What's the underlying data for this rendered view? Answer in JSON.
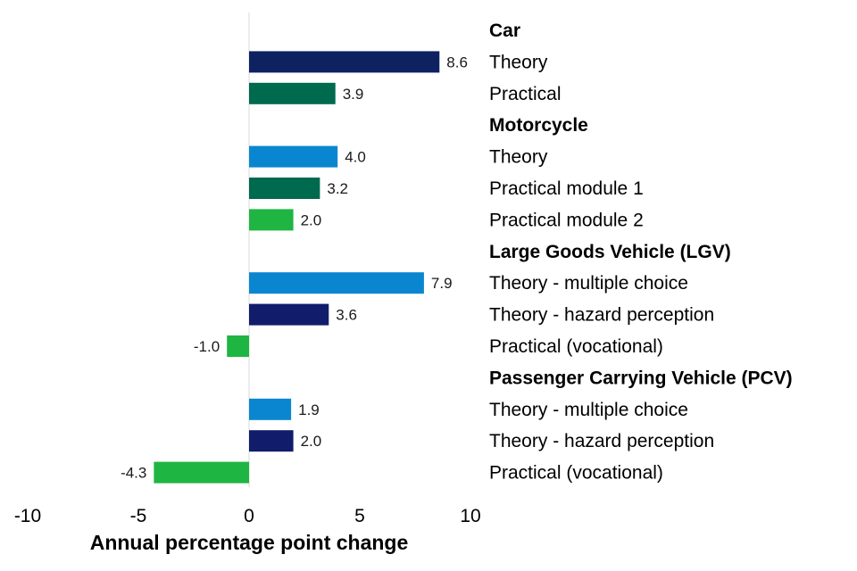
{
  "chart_data": {
    "type": "bar",
    "orientation": "horizontal",
    "xlabel": "Annual percentage point change",
    "xlim": [
      -10,
      10
    ],
    "xticks": [
      -10,
      -5,
      0,
      5,
      10
    ],
    "grid": false,
    "groups": [
      {
        "name": "Car",
        "items": [
          {
            "label": "Theory",
            "value": 8.6,
            "value_label": "8.6",
            "color": "#0e2262"
          },
          {
            "label": "Practical",
            "value": 3.9,
            "value_label": "3.9",
            "color": "#006a4e"
          }
        ]
      },
      {
        "name": "Motorcycle",
        "items": [
          {
            "label": "Theory",
            "value": 4.0,
            "value_label": "4.0",
            "color": "#0a86d1"
          },
          {
            "label": "Practical module 1",
            "value": 3.2,
            "value_label": "3.2",
            "color": "#006a4e"
          },
          {
            "label": "Practical module 2",
            "value": 2.0,
            "value_label": "2.0",
            "color": "#1fb542"
          }
        ]
      },
      {
        "name": "Large Goods Vehicle (LGV)",
        "items": [
          {
            "label": "Theory - multiple choice",
            "value": 7.9,
            "value_label": "7.9",
            "color": "#0a86d1"
          },
          {
            "label": "Theory - hazard perception",
            "value": 3.6,
            "value_label": "3.6",
            "color": "#111c6b"
          },
          {
            "label": "Practical (vocational)",
            "value": -1.0,
            "value_label": "-1.0",
            "color": "#1fb542"
          }
        ]
      },
      {
        "name": "Passenger Carrying Vehicle (PCV)",
        "items": [
          {
            "label": "Theory - multiple choice",
            "value": 1.9,
            "value_label": "1.9",
            "color": "#0a86d1"
          },
          {
            "label": "Theory - hazard perception",
            "value": 2.0,
            "value_label": "2.0",
            "color": "#111c6b"
          },
          {
            "label": "Practical (vocational)",
            "value": -4.3,
            "value_label": "-4.3",
            "color": "#1fb542"
          }
        ]
      }
    ]
  }
}
